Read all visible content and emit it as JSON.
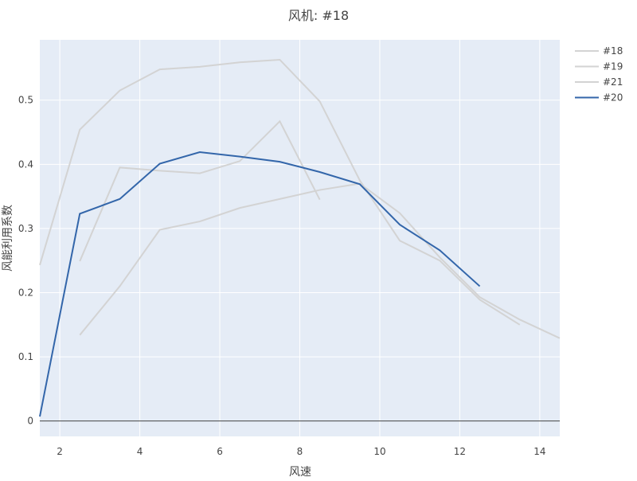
{
  "chart_data": {
    "type": "line",
    "title": "风机: #18",
    "xlabel": "风速",
    "ylabel": "风能利用系数",
    "xlim": [
      1.5,
      14.5
    ],
    "ylim": [
      -0.024,
      0.594
    ],
    "xticks": [
      2,
      4,
      6,
      8,
      10,
      12,
      14
    ],
    "yticks": [
      0,
      0.1,
      0.2,
      0.3,
      0.4,
      0.5
    ],
    "grid": true,
    "legend_position": "right",
    "series": [
      {
        "name": "#18",
        "color": "#d3d3d3",
        "x": [
          1.5,
          2.5,
          3.5,
          4.5,
          5.5,
          6.5,
          7.5,
          8.5,
          9.5,
          10.5,
          11.5,
          12.5,
          13.5
        ],
        "y": [
          0.243,
          0.454,
          0.515,
          0.548,
          0.552,
          0.559,
          0.563,
          0.498,
          0.375,
          0.281,
          0.25,
          0.189,
          0.15
        ]
      },
      {
        "name": "#19",
        "color": "#d3d3d3",
        "x": [
          2.5,
          3.5,
          4.5,
          5.5,
          6.5,
          7.5,
          8.5
        ],
        "y": [
          0.249,
          0.395,
          0.39,
          0.386,
          0.405,
          0.467,
          0.345
        ]
      },
      {
        "name": "#21",
        "color": "#d3d3d3",
        "x": [
          2.5,
          3.5,
          4.5,
          5.5,
          6.5,
          7.5,
          8.5,
          9.5,
          10.5,
          11.5,
          12.5,
          13.5,
          14.5
        ],
        "y": [
          0.134,
          0.21,
          0.298,
          0.311,
          0.332,
          0.346,
          0.36,
          0.37,
          0.324,
          0.255,
          0.193,
          0.158,
          0.129
        ]
      },
      {
        "name": "#20",
        "color": "#3366aa",
        "x": [
          1.5,
          2.5,
          3.5,
          4.5,
          5.5,
          6.5,
          7.5,
          8.5,
          9.5,
          10.5,
          11.5,
          12.5
        ],
        "y": [
          0.007,
          0.323,
          0.346,
          0.401,
          0.419,
          0.412,
          0.404,
          0.388,
          0.369,
          0.306,
          0.266,
          0.21
        ]
      }
    ]
  }
}
